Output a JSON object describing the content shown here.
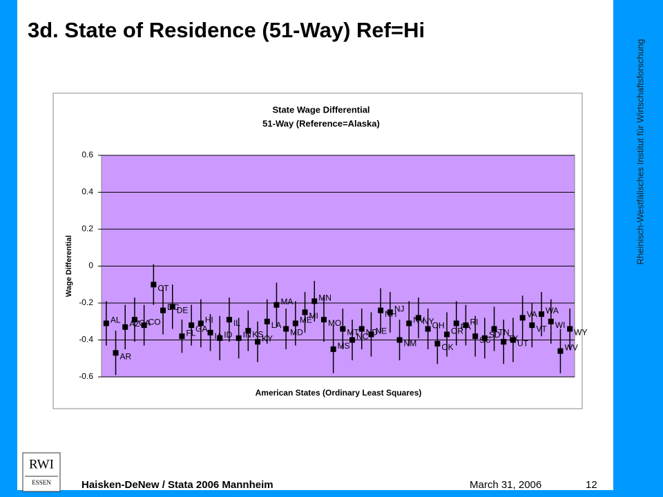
{
  "slide": {
    "title": "3d. State of Residence (51-Way) Ref=Hi",
    "side_text": "Rheinisch-Westfälisches Institut für Wirtschaftsforschung",
    "logo": [
      "RWI",
      "ESSEN"
    ],
    "footer": {
      "author": "Haisken-DeNew / Stata 2006 Mannheim",
      "date": "March 31, 2006",
      "page": "12"
    }
  },
  "chart_data": {
    "type": "scatter",
    "title": [
      "State Wage Differential",
      "51-Way (Reference=Alaska)"
    ],
    "x_label": "American States (Ordinary Least Squares)",
    "y_label": "Wage Differential",
    "categories": [
      "AL",
      "AR",
      "AZ",
      "CA",
      "CO",
      "CT",
      "DC",
      "DE",
      "FL",
      "GA",
      "HI",
      "IA",
      "ID",
      "IL",
      "IN",
      "KS",
      "KY",
      "LA",
      "MA",
      "MD",
      "ME",
      "MI",
      "MN",
      "MO",
      "MS",
      "MT",
      "NC",
      "ND",
      "NE",
      "NH",
      "NJ",
      "NM",
      "NV",
      "NY",
      "OH",
      "OK",
      "OR",
      "PA",
      "RI",
      "SC",
      "SD",
      "TN",
      "TX",
      "UT",
      "VA",
      "VT",
      "WA",
      "WI",
      "WV",
      "WY"
    ],
    "values": [
      -0.31,
      -0.47,
      -0.33,
      -0.29,
      -0.32,
      -0.1,
      -0.24,
      -0.22,
      -0.38,
      -0.32,
      -0.31,
      -0.36,
      -0.39,
      -0.29,
      -0.39,
      -0.35,
      -0.41,
      -0.3,
      -0.21,
      -0.34,
      -0.31,
      -0.25,
      -0.19,
      -0.29,
      -0.45,
      -0.34,
      -0.4,
      -0.34,
      -0.37,
      -0.24,
      -0.25,
      -0.4,
      -0.31,
      -0.28,
      -0.34,
      -0.42,
      -0.37,
      -0.31,
      -0.32,
      -0.38,
      -0.39,
      -0.34,
      -0.41,
      -0.4,
      -0.28,
      -0.32,
      -0.26,
      -0.3,
      -0.46,
      -0.34
    ],
    "errors": [
      0.12,
      0.12,
      0.12,
      0.12,
      0.11,
      0.11,
      0.13,
      0.12,
      0.09,
      0.11,
      0.13,
      0.1,
      0.12,
      0.12,
      0.11,
      0.11,
      0.11,
      0.12,
      0.12,
      0.11,
      0.12,
      0.11,
      0.11,
      0.12,
      0.13,
      0.11,
      0.11,
      0.11,
      0.12,
      0.12,
      0.11,
      0.11,
      0.12,
      0.11,
      0.11,
      0.11,
      0.12,
      0.12,
      0.11,
      0.11,
      0.11,
      0.12,
      0.12,
      0.12,
      0.12,
      0.12,
      0.12,
      0.12,
      0.12,
      0.11
    ],
    "color": "#000000",
    "plot_color": "#cc99ff",
    "ylim": [
      -0.6,
      0.6
    ],
    "yticks": [
      0.6,
      0.4,
      0.2,
      0,
      -0.2,
      -0.4,
      -0.6
    ],
    "grid": true
  }
}
